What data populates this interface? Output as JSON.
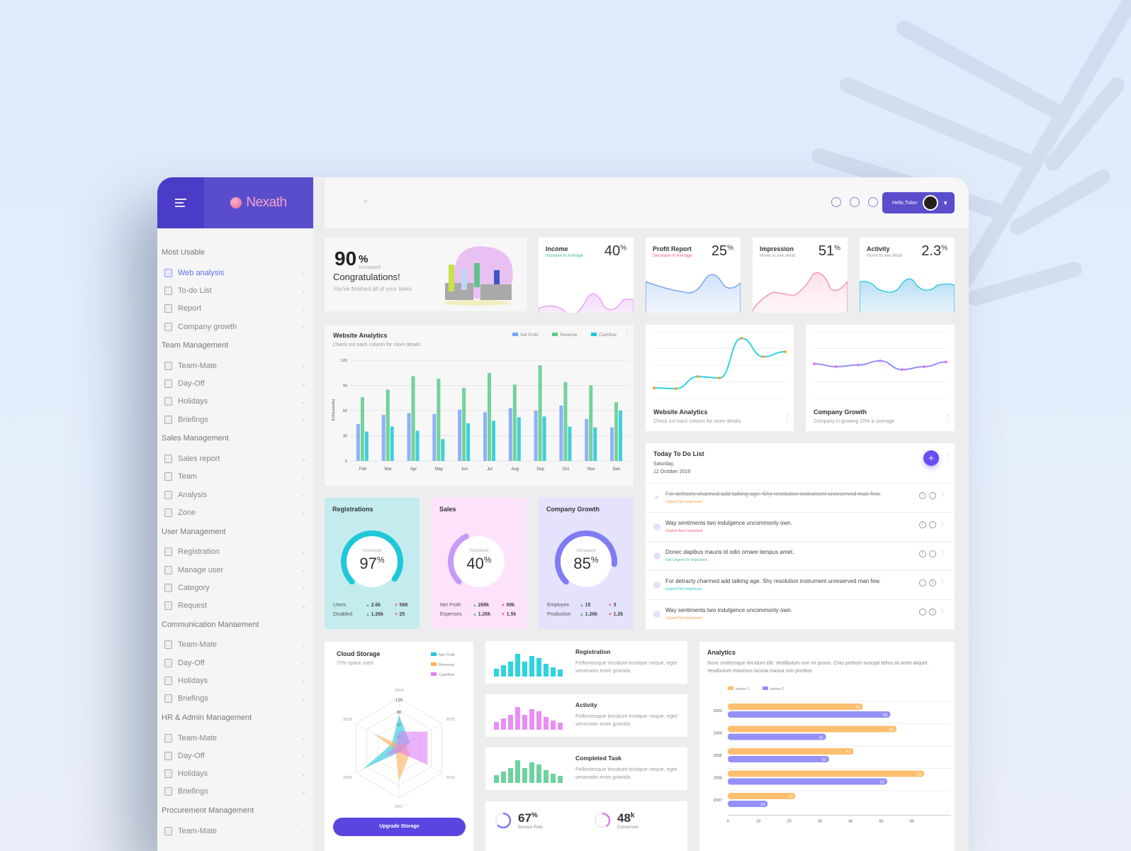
{
  "brand": {
    "name": "Nexath"
  },
  "topbar": {
    "user_greeting": "Hello,Tulon",
    "add_label": "+"
  },
  "sidebar": {
    "sections": [
      {
        "title": "Most Usable",
        "items": [
          {
            "label": "Web analysis",
            "active": true
          },
          {
            "label": "To-do List"
          },
          {
            "label": "Report"
          },
          {
            "label": "Company growth"
          }
        ]
      },
      {
        "title": "Team Management",
        "items": [
          {
            "label": "Team-Mate"
          },
          {
            "label": "Day-Off"
          },
          {
            "label": "Holidays"
          },
          {
            "label": "Briefings"
          }
        ]
      },
      {
        "title": "Sales Management",
        "items": [
          {
            "label": "Sales report"
          },
          {
            "label": "Team"
          },
          {
            "label": "Analysis"
          },
          {
            "label": "Zone"
          }
        ]
      },
      {
        "title": "User Management",
        "items": [
          {
            "label": "Registration"
          },
          {
            "label": "Manage user"
          },
          {
            "label": "Category"
          },
          {
            "label": "Request"
          }
        ]
      },
      {
        "title": "Communication Manaement",
        "items": [
          {
            "label": "Team-Mate"
          },
          {
            "label": "Day-Off"
          },
          {
            "label": "Holidays"
          },
          {
            "label": "Briefings"
          }
        ]
      },
      {
        "title": "HR & Admin Management",
        "items": [
          {
            "label": "Team-Mate"
          },
          {
            "label": "Day-Off"
          },
          {
            "label": "Holidays"
          },
          {
            "label": "Briefings"
          }
        ]
      },
      {
        "title": "Procurement Management",
        "items": [
          {
            "label": "Team-Mate"
          }
        ]
      }
    ]
  },
  "congrats": {
    "value": "90",
    "unit": "%",
    "note": "Increased",
    "title": "Congratulations!",
    "subtitle": "You've finished all of your tasks"
  },
  "kpis": [
    {
      "title": "Income",
      "subtitle": "Increase in Average",
      "value": "40",
      "unit": "%",
      "sub_color": "#3cc37d"
    },
    {
      "title": "Profit Report",
      "subtitle": "Decrease in Average",
      "value": "25",
      "unit": "%",
      "sub_color": "#f0607a"
    },
    {
      "title": "Impression",
      "subtitle": "Hover to see detail",
      "value": "51",
      "unit": "%",
      "sub_color": "#999999"
    },
    {
      "title": "Activity",
      "subtitle": "Hover to see detail",
      "value": "2.3",
      "unit": "%",
      "sub_color": "#999999"
    }
  ],
  "website_analytics": {
    "title": "Website Analytics",
    "subtitle": "Check out each column for more details",
    "legend": [
      "Net Profit",
      "Revenue",
      "Cashflow"
    ],
    "ylabel": "$ (thousands)"
  },
  "line_cards": [
    {
      "title": "Website Analytics",
      "subtitle": "Check out each column for more details"
    },
    {
      "title": "Company Growth",
      "subtitle": "Company is growing 20% in average"
    }
  ],
  "todo": {
    "title": "Today To Do List",
    "day": "Saturday,",
    "date": "12 October 2019",
    "items": [
      {
        "text": "For detracty charmed add talking age. Shy resolution instrument unreserved man few.",
        "tag": "Urgent Not Important",
        "tag_color": "#f7a24a",
        "done": true
      },
      {
        "text": "Way sentiments two indulgence uncommonly own.",
        "tag": "Urgent And Important",
        "tag_color": "#f0607a",
        "done": false
      },
      {
        "text": "Donec dapibus mauris id odio ornare tempus amet.",
        "tag": "Not Urgent Or Important",
        "tag_color": "#3cc37d",
        "done": false
      },
      {
        "text": "For detracty charmed add talking age. Shy resolution instrument unreserved man few.",
        "tag": "Urgent Not Important",
        "tag_color": "#1fc8d8",
        "done": false
      },
      {
        "text": "Way sentiments two indulgence uncommonly own.",
        "tag": "Urgent Not Important",
        "tag_color": "#f7a24a",
        "done": false
      }
    ]
  },
  "gauges": [
    {
      "title": "Registrations",
      "label": "Increased",
      "value": "97",
      "unit": "%",
      "rows": [
        [
          "Users",
          "2.6k",
          "568"
        ],
        [
          "Disabled",
          "1.26k",
          "25"
        ]
      ]
    },
    {
      "title": "Sales",
      "label": "Increased",
      "value": "40",
      "unit": "%",
      "rows": [
        [
          "Net Profit",
          "268k",
          "89k"
        ],
        [
          "Expenses",
          "1.26k",
          "1.5k"
        ]
      ]
    },
    {
      "title": "Company Growth",
      "label": "Increased",
      "value": "85",
      "unit": "%",
      "rows": [
        [
          "Employee",
          "15",
          "3"
        ],
        [
          "Production",
          "1.26k",
          "1.2k"
        ]
      ]
    }
  ],
  "cloud": {
    "title": "Cloud Storage",
    "subtitle": "72% space used",
    "legend": [
      "Net Profit",
      "Revenue",
      "Cashflow"
    ],
    "button": "Upgrade Storage",
    "axes": [
      "2014",
      "2015",
      "2016",
      "2017",
      "2018",
      "2019"
    ],
    "ticks": [
      "120",
      "90",
      "60",
      "30",
      "0"
    ]
  },
  "mini_cards": [
    {
      "title": "Registration",
      "desc": "Pellentesque tincidunt tristique neque, eget venenatis enim gravida."
    },
    {
      "title": "Activity",
      "desc": "Pellentesque tincidunt tristique neque, eget venenatis enim gravida."
    },
    {
      "title": "Completed Task",
      "desc": "Pellentesque tincidunt tristique neque, eget venenatis enim gravida."
    }
  ],
  "small_stats": [
    {
      "value": "67",
      "unit": "%",
      "label": "Bounce Rate"
    },
    {
      "value": "48",
      "unit": "k",
      "label": "Conversion"
    }
  ],
  "analytics": {
    "title": "Analytics",
    "desc": "Nunc scelerisque tincidunt elit. Vestibulum non mi ipsum. Cras pretium suscipit tellus sit amet aliquet. Vestibulum maximus lacinia massa non porttitor.",
    "legend": [
      "series-1",
      "series-2"
    ]
  },
  "chart_data": [
    {
      "type": "bar",
      "title": "Website Analytics",
      "categories": [
        "Feb",
        "Mar",
        "Apr",
        "May",
        "Jun",
        "Jul",
        "Aug",
        "Sep",
        "Oct",
        "Nov",
        "Dec"
      ],
      "ylabel": "$ (thousands)",
      "ylim": [
        0,
        120
      ],
      "yticks": [
        0,
        30,
        60,
        90,
        120
      ],
      "series": [
        {
          "name": "Net Profit",
          "color": "#7aa6f7",
          "values": [
            44,
            55,
            57,
            56,
            61,
            58,
            63,
            60,
            66,
            50,
            40
          ]
        },
        {
          "name": "Revenue",
          "color": "#5ccb8a",
          "values": [
            76,
            85,
            101,
            98,
            87,
            105,
            91,
            114,
            94,
            90,
            70
          ]
        },
        {
          "name": "Cashflow",
          "color": "#1fc8d8",
          "values": [
            35,
            41,
            36,
            26,
            45,
            48,
            52,
            53,
            41,
            40,
            60
          ]
        }
      ]
    },
    {
      "type": "line",
      "title": "Website Analytics",
      "values": [
        31,
        30,
        47,
        45,
        101,
        75,
        82
      ]
    },
    {
      "type": "line",
      "title": "Company Growth",
      "values": [
        55,
        50,
        53,
        60,
        45,
        50,
        58
      ]
    },
    {
      "type": "radar",
      "title": "Cloud Storage",
      "axes": [
        "2014",
        "2015",
        "2016",
        "2017",
        "2018",
        "2019"
      ],
      "ylim": [
        0,
        120
      ],
      "series": [
        {
          "name": "Net Profit",
          "values": [
            80,
            30,
            10,
            10,
            100,
            20
          ]
        },
        {
          "name": "Revenue",
          "values": [
            10,
            20,
            30,
            80,
            10,
            70
          ]
        },
        {
          "name": "Cashflow",
          "values": [
            40,
            80,
            80,
            10,
            40,
            10
          ]
        }
      ]
    },
    {
      "type": "bar",
      "title": "Analytics",
      "orientation": "horizontal",
      "categories": [
        "2003",
        "2004",
        "2005",
        "2006",
        "2007"
      ],
      "xticks": [
        0,
        10,
        20,
        30,
        40,
        50,
        60
      ],
      "series": [
        {
          "name": "series-1",
          "color": "#fdbf6f",
          "values": [
            44,
            55,
            41,
            64,
            22
          ]
        },
        {
          "name": "series-2",
          "color": "#9590f7",
          "values": [
            53,
            32,
            33,
            52,
            13
          ]
        }
      ]
    }
  ]
}
